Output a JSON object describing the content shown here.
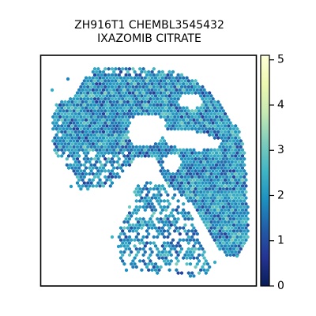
{
  "chart_data": {
    "type": "scatter",
    "title_line1": "ZH916T1 CHEMBL3545432",
    "title_line2": "IXAZOMIB CITRATE",
    "xlabel": "",
    "ylabel": "",
    "grid": false,
    "marker": "hexagon",
    "colorbar": {
      "ticks": [
        "0",
        "1",
        "2",
        "3",
        "4",
        "5"
      ],
      "range": [
        0,
        5.1
      ],
      "colormap": "YlGnBu",
      "stops": [
        {
          "v": 0.0,
          "c": "#081d58"
        },
        {
          "v": 0.125,
          "c": "#253494"
        },
        {
          "v": 0.25,
          "c": "#225ea8"
        },
        {
          "v": 0.375,
          "c": "#1d91c0"
        },
        {
          "v": 0.5,
          "c": "#41b6c4"
        },
        {
          "v": 0.625,
          "c": "#7fcdbb"
        },
        {
          "v": 0.75,
          "c": "#c7e9b4"
        },
        {
          "v": 0.875,
          "c": "#edf8b1"
        },
        {
          "v": 1.0,
          "c": "#ffffd9"
        }
      ]
    },
    "value_summary": {
      "typical_min": 0.8,
      "typical_max": 3.2,
      "mode": 1.9
    }
  }
}
